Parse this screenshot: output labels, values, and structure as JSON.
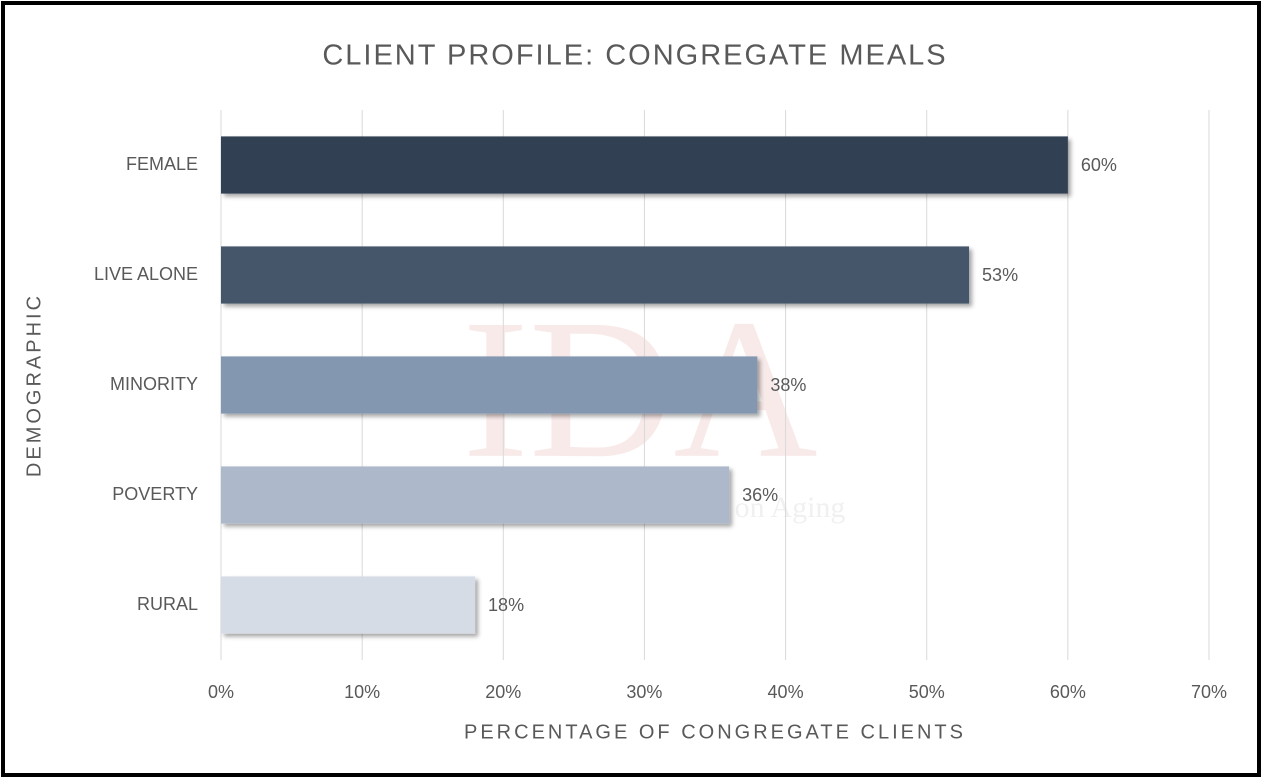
{
  "chart_data": {
    "type": "bar",
    "orientation": "horizontal",
    "title": "CLIENT PROFILE: CONGREGATE MEALS",
    "xlabel": "PERCENTAGE OF CONGREGATE CLIENTS",
    "ylabel": "DEMOGRAPHIC",
    "watermark": [
      "IDA",
      "on Aging"
    ],
    "categories": [
      "FEMALE",
      "LIVE ALONE",
      "MINORITY",
      "POVERTY",
      "RURAL"
    ],
    "values": [
      60,
      53,
      38,
      36,
      18
    ],
    "value_labels": [
      "60%",
      "53%",
      "38%",
      "36%",
      "18%"
    ],
    "colors": [
      "#323f53",
      "#44546a",
      "#8497b0",
      "#adb9ca",
      "#d6dce5"
    ],
    "xlim": [
      0,
      70
    ],
    "xticks": [
      {
        "value": 0,
        "label": "0%"
      },
      {
        "value": 10,
        "label": "10%"
      },
      {
        "value": 20,
        "label": "20%"
      },
      {
        "value": 30,
        "label": "30%"
      },
      {
        "value": 40,
        "label": "40%"
      },
      {
        "value": 50,
        "label": "50%"
      },
      {
        "value": 60,
        "label": "60%"
      },
      {
        "value": 70,
        "label": "70%"
      }
    ],
    "grid": true
  }
}
